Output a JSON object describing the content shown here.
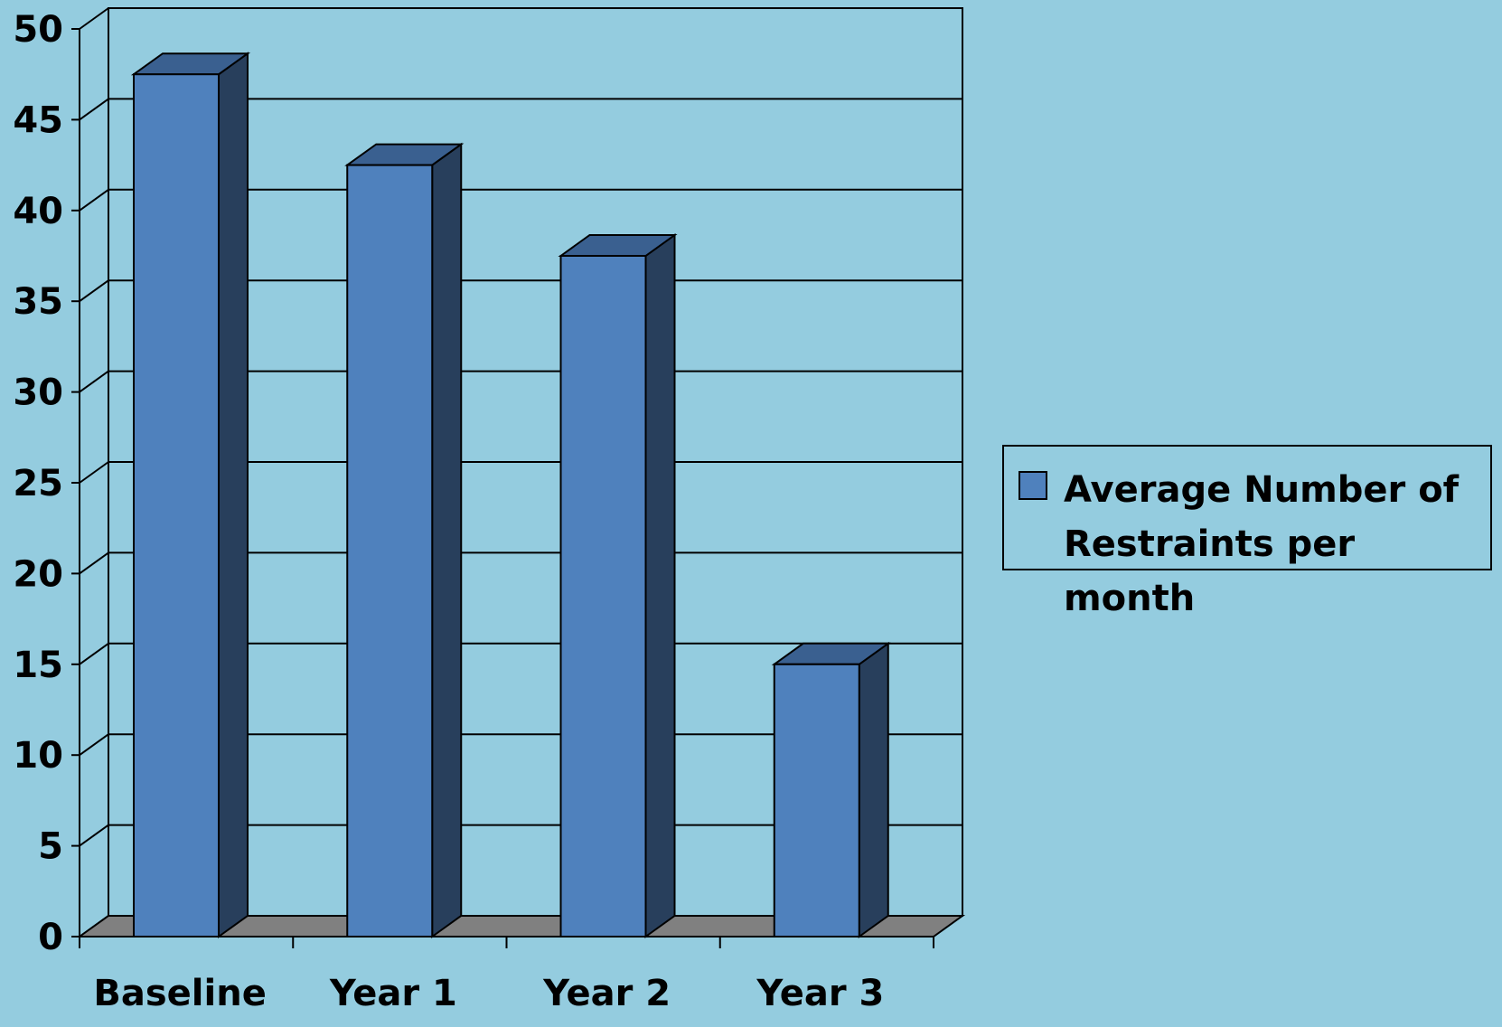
{
  "chart_data": {
    "type": "bar",
    "categories": [
      "Baseline",
      "Year 1",
      "Year 2",
      "Year 3"
    ],
    "series": [
      {
        "name": "Average Number of Restraints per month",
        "values": [
          47.5,
          42.5,
          37.5,
          15
        ],
        "color": "#4F81BD"
      }
    ],
    "ylim": [
      0,
      50
    ],
    "yticks": [
      0,
      5,
      10,
      15,
      20,
      25,
      30,
      35,
      40,
      45,
      50
    ],
    "grid": true,
    "legend_position": "right",
    "style": "3d-column"
  },
  "colors": {
    "background": "#94CCDF",
    "bar_front": "#4F81BD",
    "bar_side": "#283F5C",
    "bar_top": "#3A6090",
    "floor": "#808080"
  }
}
